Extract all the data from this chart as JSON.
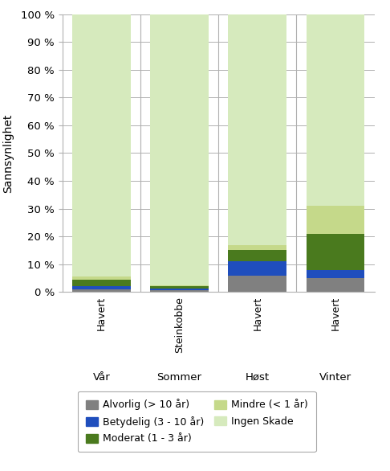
{
  "bar_labels_top": [
    "Havert",
    "Steinkobbe",
    "Havert",
    "Havert"
  ],
  "bar_labels_bottom": [
    "Vår",
    "Sommer",
    "Høst",
    "Vinter"
  ],
  "series": {
    "Alvorlig (> 10 år)": [
      1.0,
      0.8,
      6.0,
      5.0
    ],
    "Betydelig (3 - 10 år)": [
      1.0,
      0.5,
      5.0,
      3.0
    ],
    "Moderat (1 - 3 år)": [
      2.5,
      0.7,
      4.0,
      13.0
    ],
    "Mindre (< 1 år)": [
      1.0,
      0.5,
      2.0,
      10.0
    ],
    "Ingen Skade": [
      94.5,
      97.5,
      83.0,
      69.0
    ]
  },
  "colors": {
    "Alvorlig (> 10 år)": "#808080",
    "Betydelig (3 - 10 år)": "#1F4EBD",
    "Moderat (1 - 3 år)": "#4A7A1E",
    "Mindre (< 1 år)": "#C5D98A",
    "Ingen Skade": "#D6EABD"
  },
  "ylabel": "Sannsynlighet",
  "ylim": [
    0,
    100
  ],
  "yticks": [
    0,
    10,
    20,
    30,
    40,
    50,
    60,
    70,
    80,
    90,
    100
  ],
  "ytick_labels": [
    "0 %",
    "10 %",
    "20 %",
    "30 %",
    "40 %",
    "50 %",
    "60 %",
    "70 %",
    "80 %",
    "90 %",
    "100 %"
  ],
  "background_color": "#ffffff",
  "grid_color": "#b0b0b0",
  "bar_width": 0.75,
  "legend_order": [
    "Alvorlig (> 10 år)",
    "Betydelig (3 - 10 år)",
    "Moderat (1 - 3 år)",
    "Mindre (< 1 år)",
    "Ingen Skade"
  ]
}
